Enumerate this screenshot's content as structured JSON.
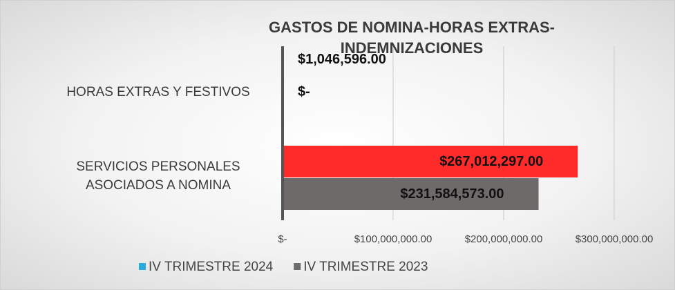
{
  "chart_data": {
    "type": "hbar",
    "title": "GASTOS DE NOMINA-HORAS EXTRAS-INDEMNIZACIONES",
    "categories": [
      "HORAS EXTRAS Y FESTIVOS",
      "SERVICIOS PERSONALES ASOCIADOS A NOMINA"
    ],
    "series": [
      {
        "name": "IV TRIMESTRE 2024",
        "color": "#29abe2",
        "bar_colors": [
          "#29abe2",
          "#ff2a2a"
        ],
        "values": [
          1046596,
          267012297
        ],
        "value_labels": [
          "$1,046,596.00",
          "$267,012,297.00"
        ]
      },
      {
        "name": "IV TRIMESTRE 2023",
        "color": "#6e6a6a",
        "bar_colors": [
          "#6e6a6a",
          "#6e6a6a"
        ],
        "values": [
          0,
          231584573
        ],
        "value_labels": [
          "$-",
          "$231,584,573.00"
        ]
      }
    ],
    "xlim": [
      0,
      300000000
    ],
    "xticks": [
      {
        "value": 0,
        "label": "$-"
      },
      {
        "value": 100000000,
        "label": "$100,000,000.00"
      },
      {
        "value": 200000000,
        "label": "$200,000,000.00"
      },
      {
        "value": 300000000,
        "label": "$300,000,000.00"
      }
    ],
    "grid": true,
    "legend": "bottom"
  }
}
